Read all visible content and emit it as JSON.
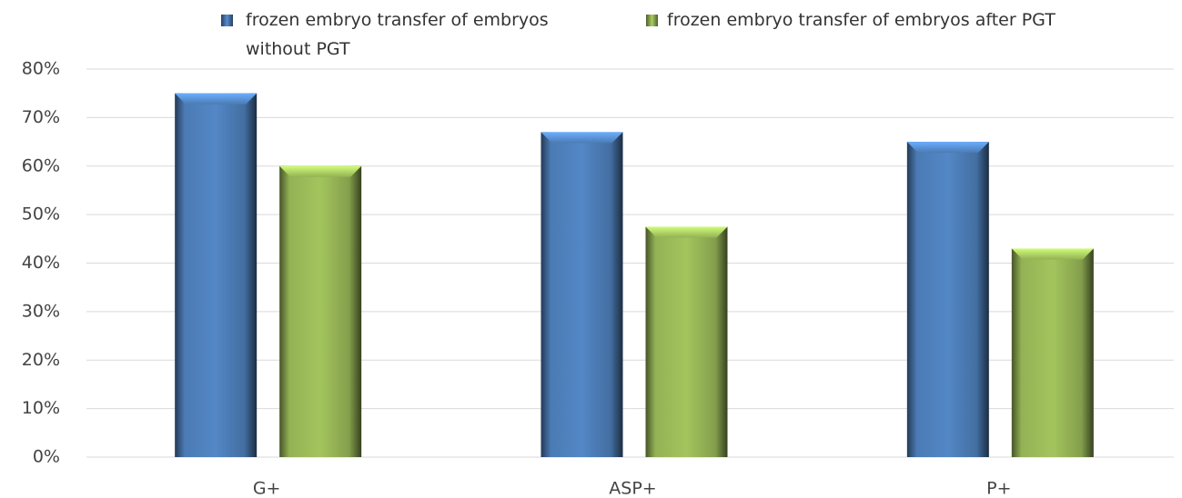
{
  "chart_data": {
    "type": "bar",
    "categories": [
      "G+",
      "ASP+",
      "P+"
    ],
    "series": [
      {
        "name": "frozen embryo transfer of embryos without PGT",
        "color": "#4f81bd",
        "values": [
          75,
          67,
          65
        ]
      },
      {
        "name": "frozen embryo transfer of embryos after PGT",
        "color": "#9bbb59",
        "values": [
          60,
          47.5,
          43
        ]
      }
    ],
    "ylim": [
      0,
      80
    ],
    "yticks": [
      {
        "value": 0,
        "label": "0%"
      },
      {
        "value": 10,
        "label": "10%"
      },
      {
        "value": 20,
        "label": "20%"
      },
      {
        "value": 30,
        "label": "30%"
      },
      {
        "value": 40,
        "label": "40%"
      },
      {
        "value": 50,
        "label": "50%"
      },
      {
        "value": 60,
        "label": "60%"
      },
      {
        "value": 70,
        "label": "70%"
      },
      {
        "value": 80,
        "label": "80%"
      }
    ],
    "grid": true,
    "legend": "top"
  }
}
